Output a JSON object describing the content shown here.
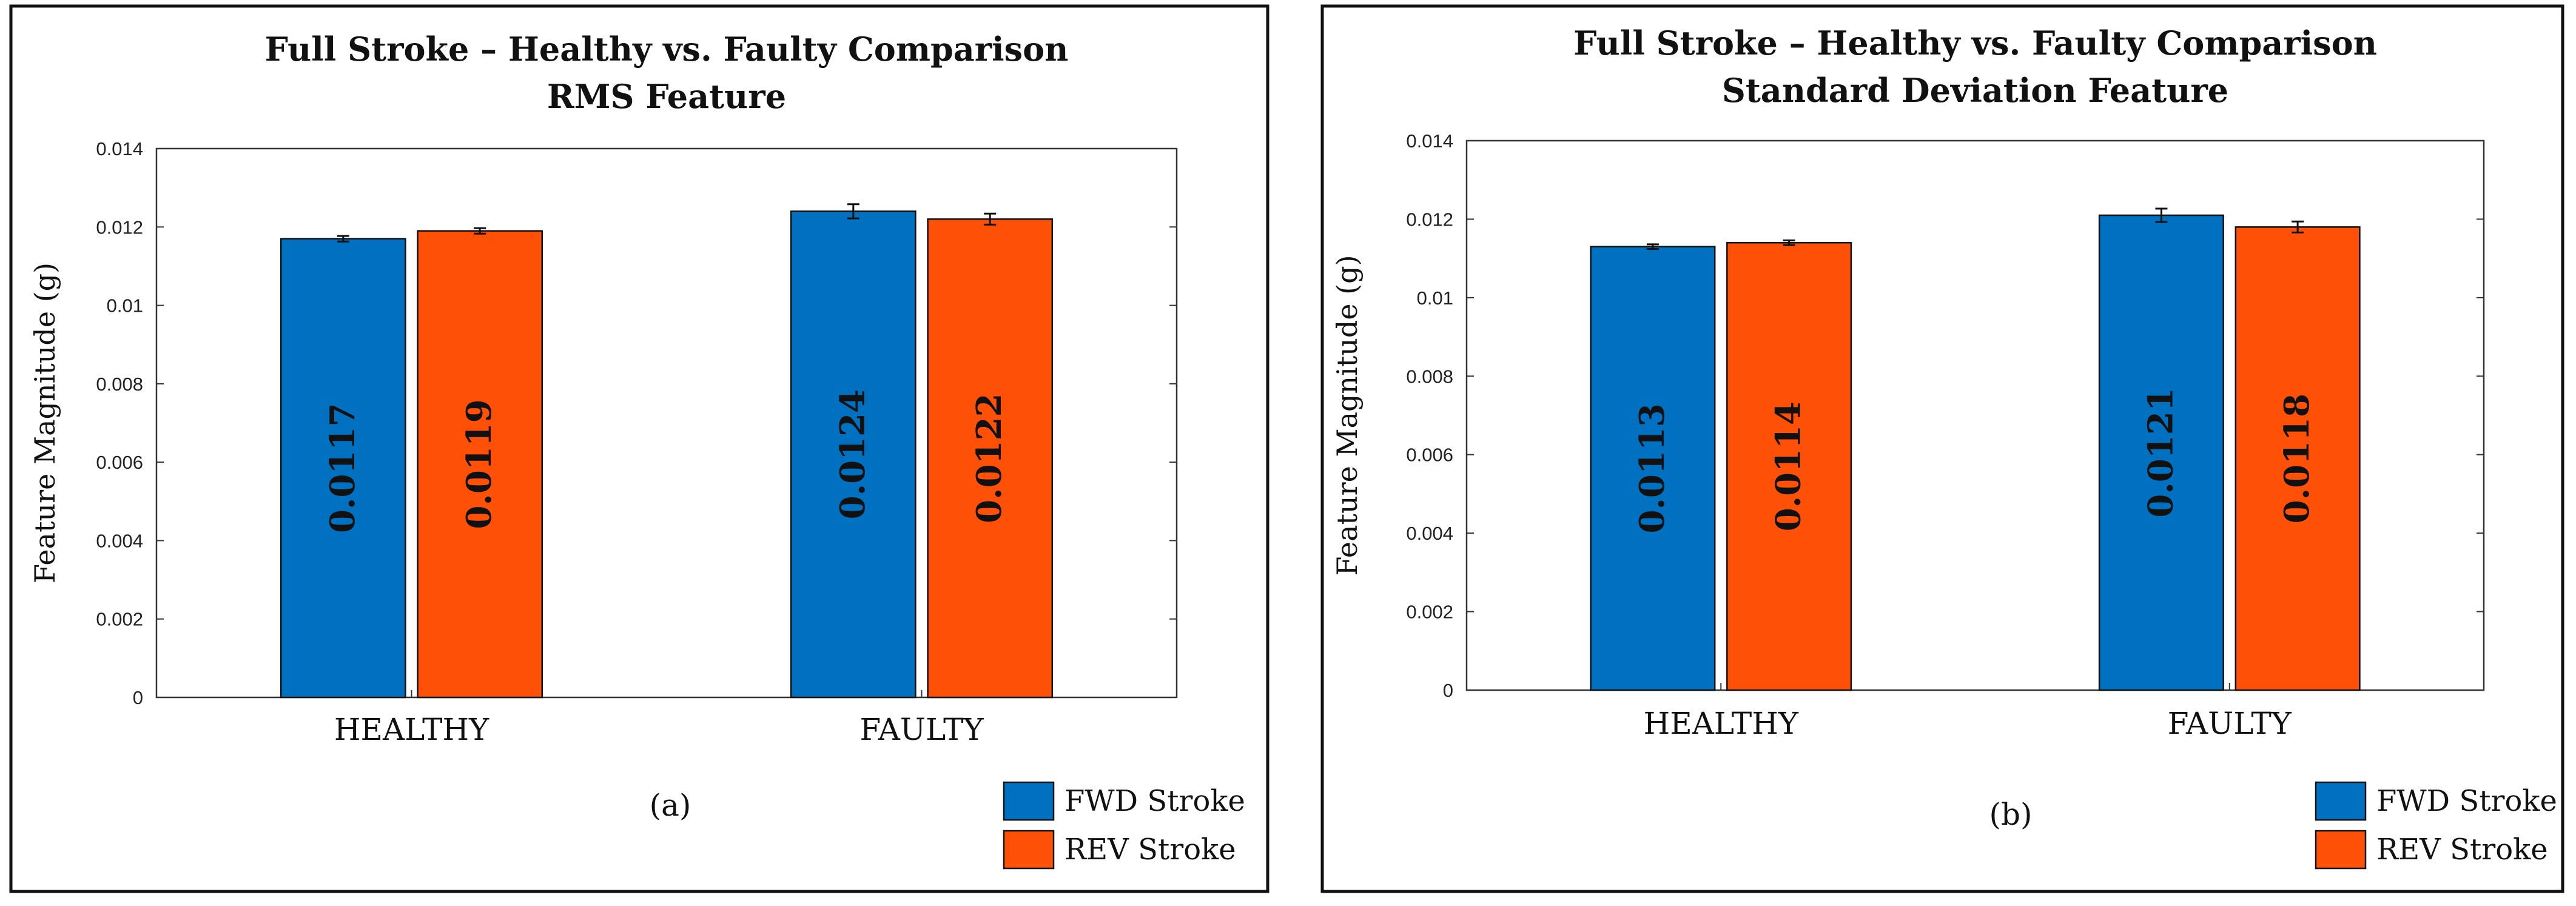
{
  "chart_data": [
    {
      "type": "bar",
      "title": "Full Stroke – Healthy vs. Faulty Comparison",
      "subtitle": "RMS Feature",
      "xlabel": "",
      "ylabel": "Feature Magnitude (g)",
      "ylim": [
        0,
        0.014
      ],
      "yticks": [
        "0",
        "0.002",
        "0.004",
        "0.006",
        "0.008",
        "0.01",
        "0.012",
        "0.014"
      ],
      "categories": [
        "HEALTHY",
        "FAULTY"
      ],
      "series": [
        {
          "name": "FWD Stroke",
          "color": "#0070C0",
          "values": [
            0.0117,
            0.0124
          ],
          "labels": [
            "0.0117",
            "0.0124"
          ],
          "errors": [
            7e-05,
            0.00018
          ]
        },
        {
          "name": "REV Stroke",
          "color": "#FF5008",
          "values": [
            0.0119,
            0.0122
          ],
          "labels": [
            "0.0119",
            "0.0122"
          ],
          "errors": [
            7e-05,
            0.00014
          ]
        }
      ],
      "panel_label": "(a)",
      "legend_position": "bottom-right"
    },
    {
      "type": "bar",
      "title": "Full Stroke – Healthy vs. Faulty Comparison",
      "subtitle": "Standard Deviation Feature",
      "xlabel": "",
      "ylabel": "Feature Magnitude (g)",
      "ylim": [
        0,
        0.014
      ],
      "yticks": [
        "0",
        "0.002",
        "0.004",
        "0.006",
        "0.008",
        "0.01",
        "0.012",
        "0.014"
      ],
      "categories": [
        "HEALTHY",
        "FAULTY"
      ],
      "series": [
        {
          "name": "FWD Stroke",
          "color": "#0070C0",
          "values": [
            0.0113,
            0.0121
          ],
          "labels": [
            "0.0113",
            "0.0121"
          ],
          "errors": [
            6e-05,
            0.00017
          ]
        },
        {
          "name": "REV Stroke",
          "color": "#FF5008",
          "values": [
            0.0114,
            0.0118
          ],
          "labels": [
            "0.0114",
            "0.0118"
          ],
          "errors": [
            6e-05,
            0.00014
          ]
        }
      ],
      "panel_label": "(b)",
      "legend_position": "bottom-right"
    }
  ]
}
